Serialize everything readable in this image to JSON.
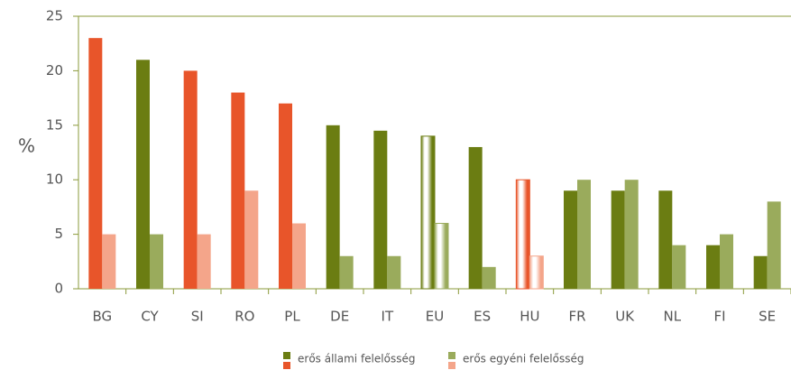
{
  "chart_data": {
    "type": "bar",
    "categories": [
      "BG",
      "CY",
      "SI",
      "RO",
      "PL",
      "DE",
      "IT",
      "EU",
      "ES",
      "HU",
      "FR",
      "UK",
      "NL",
      "FI",
      "SE"
    ],
    "y_label": "%",
    "series": [
      {
        "name": "erős állami felelősség",
        "color": "#6b7d12",
        "alt_color": "#e8552a",
        "colors": [
          "#e8552a",
          "#6b7d12",
          "#e8552a",
          "#e8552a",
          "#e8552a",
          "#6b7d12",
          "#6b7d12",
          "#6b7d12",
          "#6b7d12",
          "#e8552a",
          "#6b7d12",
          "#6b7d12",
          "#6b7d12",
          "#6b7d12",
          "#6b7d12"
        ],
        "values": [
          23,
          21,
          20,
          18,
          17,
          15,
          14.5,
          14,
          13,
          10,
          9,
          9,
          9,
          4,
          3
        ]
      },
      {
        "name": "erős egyéni felelősség",
        "color": "#9aab5c",
        "alt_color": "#f4a58a",
        "colors": [
          "#f4a58a",
          "#9aab5c",
          "#f4a58a",
          "#f4a58a",
          "#f4a58a",
          "#9aab5c",
          "#9aab5c",
          "#9aab5c",
          "#9aab5c",
          "#f4a58a",
          "#9aab5c",
          "#9aab5c",
          "#9aab5c",
          "#9aab5c",
          "#9aab5c"
        ],
        "values": [
          5,
          5,
          5,
          9,
          6,
          3,
          3,
          6,
          2,
          3,
          10,
          10,
          4,
          5,
          8
        ]
      }
    ],
    "highlight_categories": [
      7,
      9
    ],
    "ylim": [
      0,
      25
    ],
    "yticks": [
      0,
      5,
      10,
      15,
      20,
      25
    ]
  }
}
